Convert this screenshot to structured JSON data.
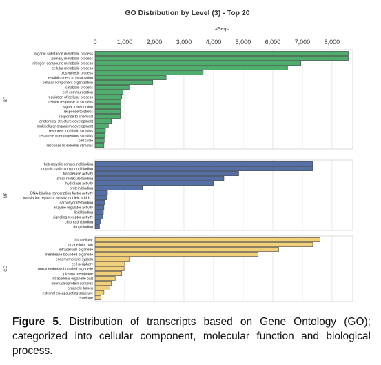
{
  "chart_data": {
    "type": "bar",
    "orientation": "horizontal",
    "title": "GO Distribution by Level (3) - Top 20",
    "xlabel": "#Seqs",
    "xlim": [
      0,
      8700
    ],
    "xticks": [
      0,
      1000,
      2000,
      3000,
      4000,
      5000,
      6000,
      7000,
      8000
    ],
    "xtick_labels": [
      "0",
      "1,000",
      "2,000",
      "3,000",
      "4,000",
      "5,000",
      "6,000",
      "7,000",
      "8,000"
    ],
    "grid": true,
    "groups": [
      {
        "label": "BP",
        "color": "#4fae6e",
        "categories": [
          "organic substance metabolic process",
          "primary metabolic process",
          "nitrogen compound metabolic process",
          "cellular metabolic process",
          "biosynthetic process",
          "establishment of localization",
          "cellular component organization",
          "catabolic process",
          "cell communication",
          "regulation of cellular process",
          "cellular response to stimulus",
          "signal transduction",
          "response to stress",
          "response to chemical",
          "anatomical structure development",
          "multicellular organism development",
          "response to abiotic stimulus",
          "response to endogenous stimulus",
          "cell cycle",
          "response to external stimulus"
        ],
        "values": [
          8550,
          8550,
          6950,
          6500,
          3650,
          2400,
          1950,
          1150,
          950,
          900,
          880,
          870,
          860,
          850,
          550,
          450,
          350,
          330,
          310,
          300
        ]
      },
      {
        "label": "MF",
        "color": "#5470a6",
        "categories": [
          "heterocyclic compound binding",
          "organic cyclic compound binding",
          "transferase activity",
          "small molecule binding",
          "hydrolase activity",
          "protein binding",
          "DNA-binding transcription factor activity",
          "translation regulator activity, nucleic acid b...",
          "carbohydrate binding",
          "enzyme regulator activity",
          "lipid binding",
          "signaling receptor activity",
          "chromatin binding",
          "drug binding"
        ],
        "values": [
          7350,
          7350,
          4850,
          4350,
          4000,
          1600,
          420,
          400,
          330,
          300,
          280,
          260,
          200,
          150
        ]
      },
      {
        "label": "CC",
        "color": "#f0d07a",
        "categories": [
          "intracellular",
          "intracellular part",
          "intracellular organelle",
          "membrane-bounded organelle",
          "endomembrane system",
          "cell periphery",
          "non-membrane-bounded organelle",
          "plasma membrane",
          "intracellular organelle part",
          "ribonucleoprotein complex",
          "organelle lumen",
          "external encapsulating structure",
          "envelope"
        ],
        "values": [
          7600,
          7350,
          6200,
          5500,
          1150,
          1000,
          980,
          900,
          680,
          550,
          500,
          300,
          200
        ]
      }
    ]
  },
  "caption": {
    "figure_label": "Figure 5",
    "text": ". Distribution of transcripts based on Gene Ontology (GO); categorized into cellular component, molecular function and biological process."
  }
}
